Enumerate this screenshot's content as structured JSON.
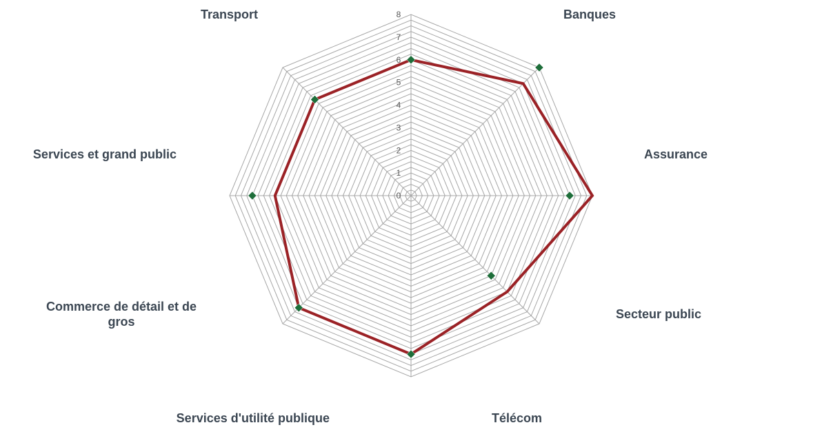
{
  "chart_data": {
    "type": "radar",
    "categories": [
      "Banques",
      "Assurance",
      "Secteur public",
      "Télécom",
      "Services d'utilité publique",
      "Commerce de détail et de gros",
      "Services et grand public",
      "Transport"
    ],
    "rlim": [
      0,
      8
    ],
    "ticks": [
      "0",
      "1",
      "2",
      "3",
      "4",
      "5",
      "6",
      "7",
      "8"
    ],
    "grid": true,
    "series": [
      {
        "values": [
          7,
          8,
          6,
          7,
          7,
          6,
          6,
          6
        ],
        "color": "#9b2226",
        "marker": "none"
      },
      {
        "values": [
          8,
          7,
          5,
          7,
          7,
          7,
          6,
          6
        ],
        "color": "#1e6e3a",
        "marker": "diamond",
        "line": "none"
      }
    ]
  }
}
